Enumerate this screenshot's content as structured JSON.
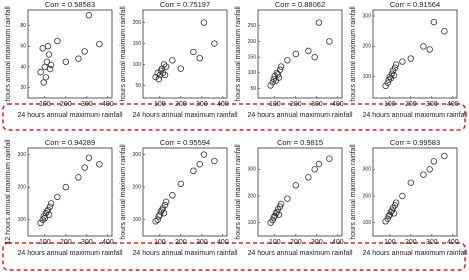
{
  "chart_data": [
    {
      "type": "scatter",
      "title": "Corr = 0.58583",
      "xlabel": "24 hours annual maximum rainfall",
      "ylabel": "hours annual maximum rainfall",
      "x": [
        80,
        90,
        95,
        100,
        105,
        110,
        115,
        120,
        125,
        130,
        160,
        200,
        260,
        290,
        310,
        360
      ],
      "values": [
        35,
        58,
        25,
        40,
        30,
        45,
        60,
        52,
        38,
        42,
        65,
        45,
        48,
        55,
        90,
        62
      ],
      "xlim": [
        20,
        420
      ],
      "xticks": [
        100,
        200,
        300,
        400
      ],
      "ylim": [
        10,
        95
      ],
      "yticks": [
        20,
        40,
        60,
        80
      ]
    },
    {
      "type": "scatter",
      "title": "Corr = 0.75197",
      "xlabel": "24 hours annual maximum rainfall",
      "ylabel": "hours annual maximum rainfall",
      "x": [
        80,
        90,
        95,
        100,
        105,
        110,
        115,
        120,
        125,
        130,
        160,
        200,
        260,
        290,
        310,
        360
      ],
      "values": [
        70,
        80,
        65,
        75,
        85,
        90,
        80,
        100,
        75,
        95,
        110,
        90,
        130,
        115,
        200,
        150
      ],
      "xlim": [
        20,
        420
      ],
      "xticks": [
        100,
        200,
        300,
        400
      ],
      "ylim": [
        20,
        230
      ],
      "yticks": [
        50,
        100,
        150,
        200
      ]
    },
    {
      "type": "scatter",
      "title": "Corr = 0.88062",
      "xlabel": "24 hours annual maximum rainfall",
      "ylabel": "hours annual maximum rainfall",
      "x": [
        80,
        90,
        95,
        100,
        105,
        110,
        115,
        120,
        125,
        130,
        160,
        200,
        260,
        290,
        310,
        360
      ],
      "values": [
        60,
        70,
        80,
        90,
        75,
        100,
        95,
        85,
        110,
        120,
        140,
        160,
        170,
        150,
        260,
        200
      ],
      "xlim": [
        20,
        420
      ],
      "xticks": [
        100,
        200,
        300,
        400
      ],
      "ylim": [
        20,
        300
      ],
      "yticks": [
        50,
        100,
        150,
        200,
        250
      ]
    },
    {
      "type": "scatter",
      "title": "Corr = 0.91564",
      "xlabel": "24 hours annual maximum rainfall",
      "ylabel": "hours annual maximum rainfall",
      "x": [
        80,
        90,
        95,
        100,
        105,
        110,
        115,
        120,
        125,
        130,
        160,
        200,
        260,
        290,
        310,
        360
      ],
      "values": [
        70,
        80,
        90,
        100,
        95,
        110,
        120,
        105,
        130,
        140,
        150,
        160,
        200,
        190,
        280,
        250
      ],
      "xlim": [
        20,
        420
      ],
      "xticks": [
        100,
        200,
        300,
        400
      ],
      "ylim": [
        30,
        320
      ],
      "yticks": [
        100,
        200,
        300
      ]
    },
    {
      "type": "scatter",
      "title": "Corr = 0.94289",
      "xlabel": "24 hours annual maximum rainfall",
      "ylabel": "12 hours annual maximum rainfall",
      "x": [
        80,
        90,
        95,
        100,
        105,
        110,
        115,
        120,
        125,
        130,
        160,
        200,
        260,
        290,
        310,
        360
      ],
      "values": [
        90,
        100,
        110,
        105,
        120,
        125,
        130,
        115,
        140,
        150,
        170,
        200,
        230,
        260,
        290,
        270
      ],
      "xlim": [
        20,
        420
      ],
      "xticks": [
        100,
        200,
        300,
        400
      ],
      "ylim": [
        50,
        320
      ],
      "yticks": [
        100,
        200,
        300
      ]
    },
    {
      "type": "scatter",
      "title": "Corr = 0.95594",
      "xlabel": "24 hours annual maximum rainfall",
      "ylabel": "hours annual maximum rainfall",
      "x": [
        80,
        90,
        95,
        100,
        105,
        110,
        115,
        120,
        125,
        130,
        160,
        200,
        260,
        290,
        310,
        360
      ],
      "values": [
        95,
        100,
        110,
        115,
        125,
        130,
        135,
        120,
        145,
        155,
        175,
        210,
        250,
        270,
        300,
        280
      ],
      "xlim": [
        20,
        420
      ],
      "xticks": [
        100,
        200,
        300,
        400
      ],
      "ylim": [
        50,
        320
      ],
      "yticks": [
        100,
        200,
        300
      ]
    },
    {
      "type": "scatter",
      "title": "Corr = 0.9815",
      "xlabel": "24 hours annual maximum rainfall",
      "ylabel": "hours annual maximum rainfall",
      "x": [
        80,
        90,
        95,
        100,
        105,
        110,
        115,
        120,
        125,
        130,
        160,
        200,
        260,
        290,
        310,
        360
      ],
      "values": [
        100,
        110,
        120,
        125,
        135,
        140,
        150,
        130,
        160,
        170,
        190,
        240,
        270,
        300,
        320,
        340
      ],
      "xlim": [
        20,
        420
      ],
      "xticks": [
        100,
        200,
        300,
        400
      ],
      "ylim": [
        50,
        380
      ],
      "yticks": [
        100,
        200,
        300
      ]
    },
    {
      "type": "scatter",
      "title": "Corr = 0.99583",
      "xlabel": "24 hours annual maximum rainfall",
      "ylabel": "hours annual maximum rainfall",
      "x": [
        80,
        90,
        95,
        100,
        105,
        110,
        115,
        120,
        125,
        130,
        160,
        200,
        260,
        290,
        310,
        360
      ],
      "values": [
        105,
        115,
        125,
        130,
        140,
        145,
        155,
        135,
        165,
        175,
        200,
        250,
        280,
        300,
        330,
        350
      ],
      "xlim": [
        20,
        420
      ],
      "xticks": [
        100,
        200,
        300,
        400
      ],
      "ylim": [
        50,
        380
      ],
      "yticks": [
        100,
        200,
        300
      ]
    }
  ]
}
